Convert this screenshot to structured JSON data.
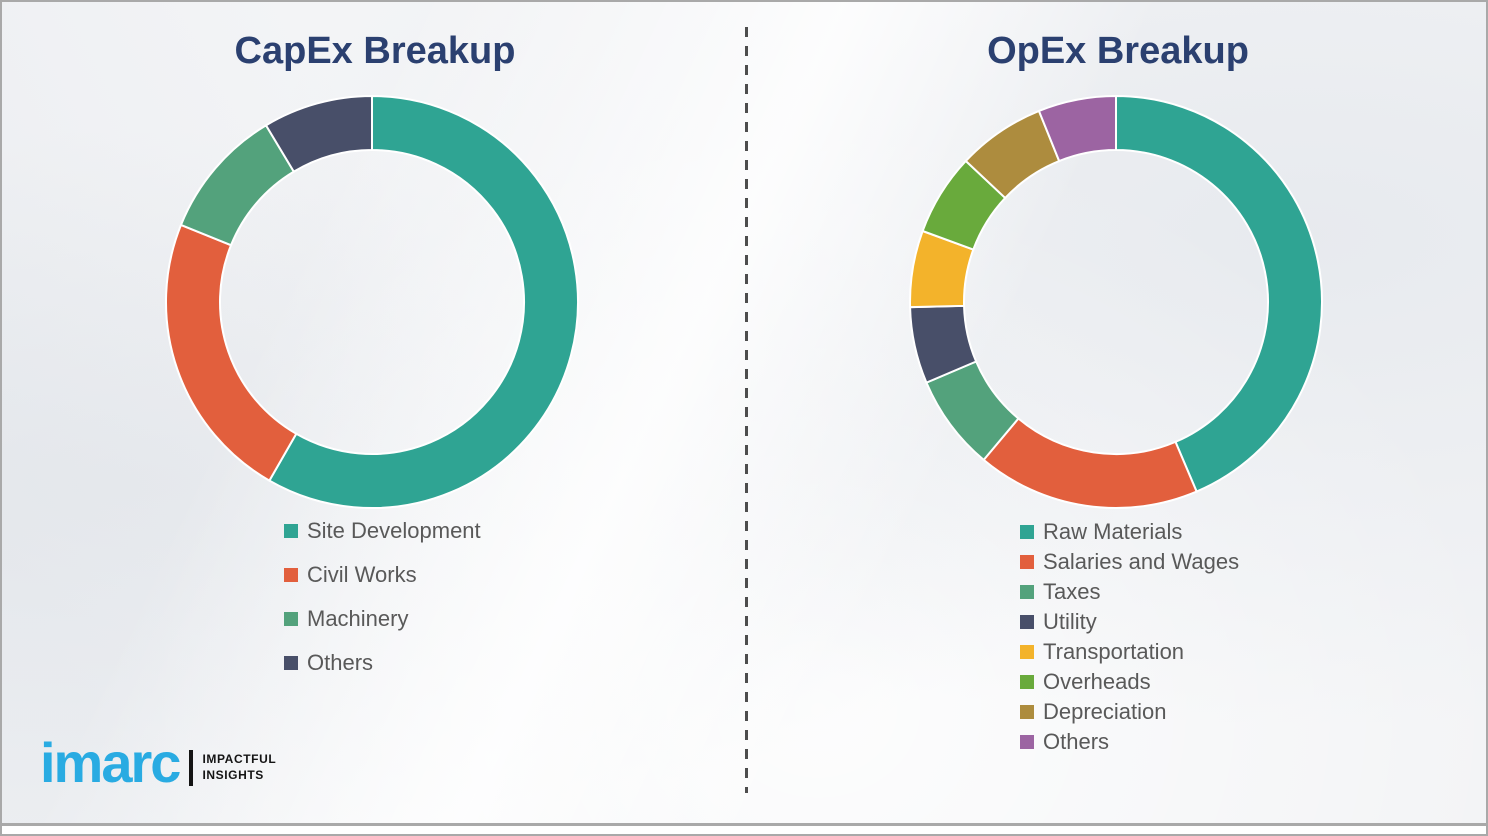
{
  "chart_data": [
    {
      "type": "pie",
      "donut": true,
      "title": "CapEx Breakup",
      "labels": [
        "Site Development",
        "Civil Works",
        "Machinery",
        "Others"
      ],
      "values": [
        58.3,
        22.8,
        10.3,
        8.6
      ],
      "colors": [
        "#2FA493",
        "#E25F3D",
        "#53A27C",
        "#484F69"
      ],
      "unit": "percent",
      "start_angle_deg": 0,
      "direction": "clockwise",
      "legend_position": "bottom-left",
      "data_labels_shown": false
    },
    {
      "type": "pie",
      "donut": true,
      "title": "OpEx Breakup",
      "labels": [
        "Raw Materials",
        "Salaries and Wages",
        "Taxes",
        "Utility",
        "Transportation",
        "Overheads",
        "Depreciation",
        "Others"
      ],
      "values": [
        43.6,
        17.5,
        7.5,
        6.0,
        6.0,
        6.4,
        6.9,
        6.1
      ],
      "colors": [
        "#2FA493",
        "#E25F3D",
        "#53A27C",
        "#484F69",
        "#F3B32B",
        "#69AA3C",
        "#AD8C3E",
        "#9C64A2"
      ],
      "unit": "percent",
      "start_angle_deg": 0,
      "direction": "clockwise",
      "legend_position": "bottom-left",
      "data_labels_shown": false
    }
  ],
  "logo": {
    "brand": "imarc",
    "tagline_line1": "IMPACTFUL",
    "tagline_line2": "INSIGHTS",
    "brand_color": "#29ABE2"
  },
  "style_colors": {
    "title_navy": "#2B4070",
    "legend_text_gray": "#595959",
    "divider_gray": "#4d4d4d",
    "background": "#f3f4f6"
  }
}
